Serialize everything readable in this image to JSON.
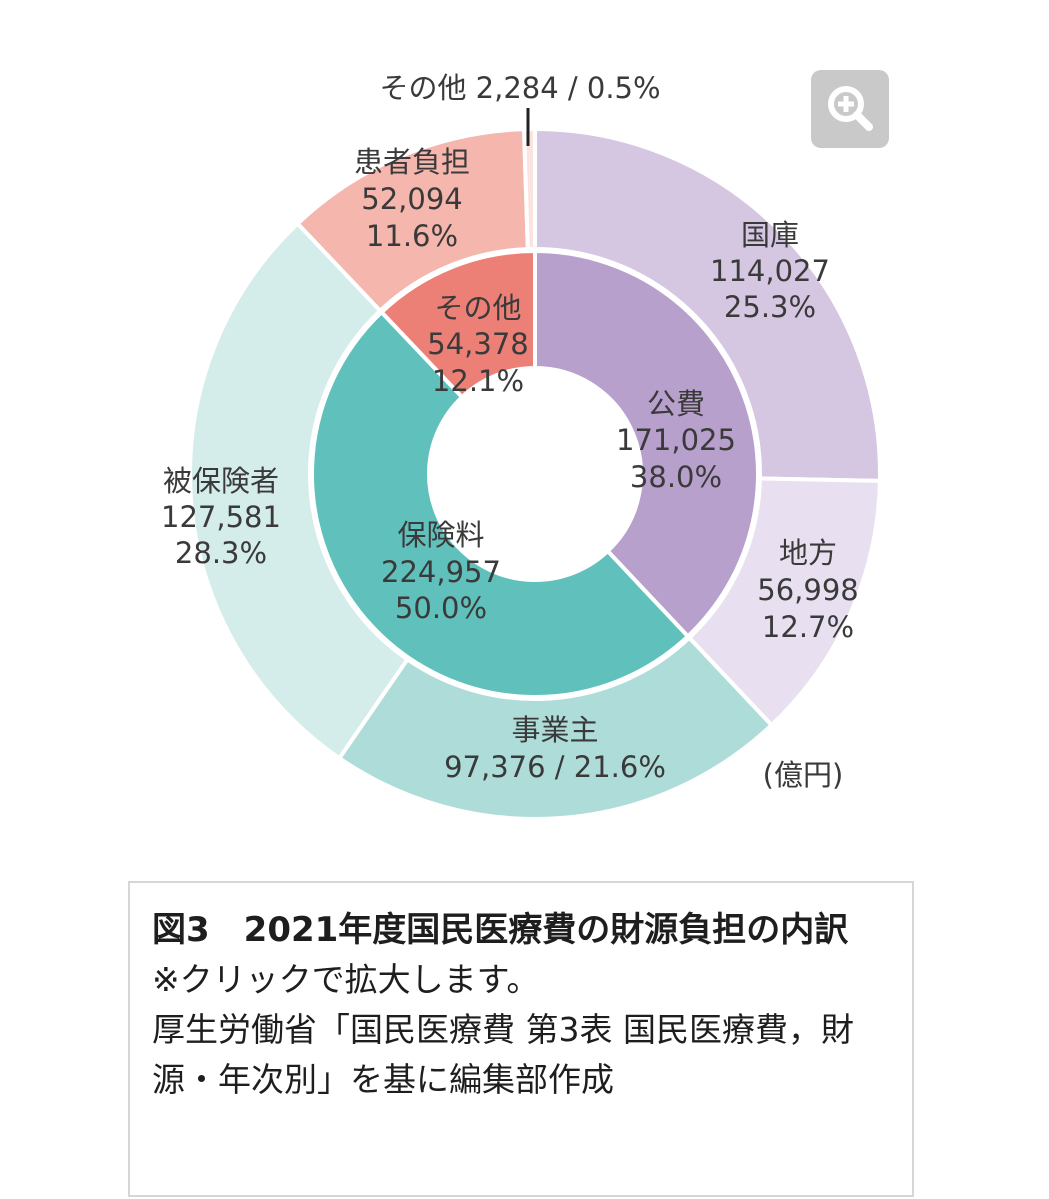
{
  "chart_data": {
    "type": "pie",
    "style": "nested donut",
    "unit_label": "(億円)",
    "inner_ring": [
      {
        "name": "公費",
        "value": 171025,
        "percent": "38.0%",
        "value_label": "171,025",
        "color": "#b8a0cc"
      },
      {
        "name": "保険料",
        "value": 224957,
        "percent": "50.0%",
        "value_label": "224,957",
        "color": "#60c0bc"
      },
      {
        "name": "その他",
        "value": 54378,
        "percent": "12.1%",
        "value_label": "54,378",
        "color": "#ec8077"
      }
    ],
    "outer_ring": [
      {
        "name": "国庫",
        "value": 114027,
        "percent": "25.3%",
        "value_label": "114,027",
        "color": "#d5c6e2"
      },
      {
        "name": "地方",
        "value": 56998,
        "percent": "12.7%",
        "value_label": "56,998",
        "color": "#e8e0f0"
      },
      {
        "name": "事業主",
        "value": 97376,
        "percent": "21.6%",
        "value_label": "97,376",
        "color": "#aeddd9"
      },
      {
        "name": "被保険者",
        "value": 127581,
        "percent": "28.3%",
        "value_label": "127,581",
        "color": "#d4ecea"
      },
      {
        "name": "患者負担",
        "value": 52094,
        "percent": "11.6%",
        "value_label": "52,094",
        "color": "#f4b6ad"
      },
      {
        "name": "その他",
        "value": 2284,
        "percent": "0.5%",
        "value_label": "2,284",
        "color": "#fbe4e0"
      }
    ],
    "labels": {
      "koufei": [
        "公費",
        "171,025",
        "38.0%"
      ],
      "hokenryo": [
        "保険料",
        "224,957",
        "50.0%"
      ],
      "sonota_in": [
        "その他",
        "54,378",
        "12.1%"
      ],
      "kokko": [
        "国庫",
        "114,027",
        "25.3%"
      ],
      "chihou": [
        "地方",
        "56,998",
        "12.7%"
      ],
      "jigyou": [
        "事業主",
        "97,376 / 21.6%"
      ],
      "hihoken": [
        "被保険者",
        "127,581",
        "28.3%"
      ],
      "kanja": [
        "患者負担",
        "52,094",
        "11.6%"
      ],
      "sonota_out": "その他 2,284 / 0.5%"
    }
  },
  "zoom_button": {
    "icon": "zoom-in-icon",
    "color": "#c9c9c9"
  },
  "caption": {
    "title": "図3　2021年度国民医療費の財源負担の内訳",
    "note": "※クリックで拡大します。",
    "source": "厚生労働省「国民医療費 第3表 国民医療費，財源・年次別」を基に編集部作成"
  }
}
